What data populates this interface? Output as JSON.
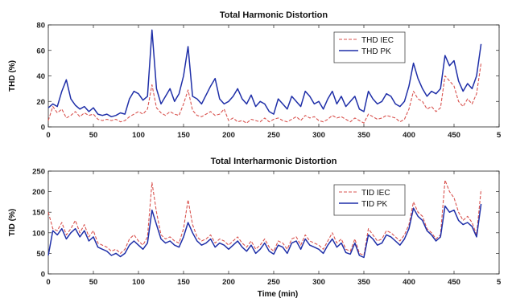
{
  "chart_data": [
    {
      "type": "line",
      "title": "Total Harmonic Distortion",
      "xlabel": "",
      "ylabel": "THD (%)",
      "xlim": [
        0,
        500
      ],
      "ylim": [
        0,
        80
      ],
      "xticks": [
        "0",
        "50",
        "100",
        "150",
        "200",
        "250",
        "300",
        "350",
        "400",
        "450",
        "5"
      ],
      "yticks": [
        "0",
        "20",
        "40",
        "60",
        "80"
      ],
      "legend_position": "top-right",
      "series": [
        {
          "name": "THD IEC",
          "color": "#d9534f",
          "style": "dashed",
          "x": [
            0,
            5,
            10,
            15,
            20,
            25,
            30,
            35,
            40,
            45,
            50,
            55,
            60,
            65,
            70,
            75,
            80,
            85,
            90,
            95,
            100,
            105,
            110,
            115,
            120,
            125,
            130,
            135,
            140,
            145,
            150,
            155,
            160,
            165,
            170,
            175,
            180,
            185,
            190,
            195,
            200,
            205,
            210,
            215,
            220,
            225,
            230,
            235,
            240,
            245,
            250,
            255,
            260,
            265,
            270,
            275,
            280,
            285,
            290,
            295,
            300,
            305,
            310,
            315,
            320,
            325,
            330,
            335,
            340,
            345,
            350,
            355,
            360,
            365,
            370,
            375,
            380,
            385,
            390,
            395,
            400,
            405,
            410,
            415,
            420,
            425,
            430,
            435,
            440,
            445,
            450,
            455,
            460,
            465,
            470,
            475,
            480
          ],
          "values": [
            5,
            16,
            11,
            14,
            7,
            9,
            12,
            8,
            11,
            9,
            10,
            6,
            5,
            6,
            5,
            6,
            4,
            5,
            8,
            10,
            12,
            10,
            14,
            33,
            15,
            11,
            9,
            12,
            10,
            9,
            18,
            29,
            13,
            9,
            8,
            10,
            12,
            9,
            10,
            14,
            5,
            7,
            4,
            5,
            3,
            6,
            5,
            4,
            7,
            4,
            6,
            7,
            5,
            4,
            6,
            8,
            5,
            9,
            7,
            8,
            5,
            4,
            6,
            9,
            7,
            8,
            6,
            4,
            7,
            5,
            3,
            10,
            8,
            6,
            7,
            9,
            8,
            7,
            4,
            6,
            14,
            28,
            22,
            20,
            14,
            16,
            12,
            15,
            40,
            36,
            32,
            20,
            16,
            22,
            18,
            26,
            50
          ]
        },
        {
          "name": "THD PK",
          "color": "#1f2fa8",
          "style": "solid",
          "x": [
            0,
            5,
            10,
            15,
            20,
            25,
            30,
            35,
            40,
            45,
            50,
            55,
            60,
            65,
            70,
            75,
            80,
            85,
            90,
            95,
            100,
            105,
            110,
            115,
            120,
            125,
            130,
            135,
            140,
            145,
            150,
            155,
            160,
            165,
            170,
            175,
            180,
            185,
            190,
            195,
            200,
            205,
            210,
            215,
            220,
            225,
            230,
            235,
            240,
            245,
            250,
            255,
            260,
            265,
            270,
            275,
            280,
            285,
            290,
            295,
            300,
            305,
            310,
            315,
            320,
            325,
            330,
            335,
            340,
            345,
            350,
            355,
            360,
            365,
            370,
            375,
            380,
            385,
            390,
            395,
            400,
            405,
            410,
            415,
            420,
            425,
            430,
            435,
            440,
            445,
            450,
            455,
            460,
            465,
            470,
            475,
            480
          ],
          "values": [
            15,
            18,
            16,
            28,
            37,
            22,
            17,
            14,
            16,
            12,
            15,
            10,
            9,
            10,
            8,
            9,
            11,
            10,
            22,
            28,
            26,
            21,
            24,
            76,
            30,
            18,
            24,
            30,
            20,
            26,
            40,
            63,
            24,
            22,
            18,
            25,
            32,
            38,
            22,
            18,
            20,
            24,
            30,
            22,
            18,
            25,
            16,
            20,
            18,
            12,
            10,
            22,
            18,
            14,
            24,
            20,
            16,
            28,
            24,
            18,
            20,
            14,
            22,
            28,
            18,
            24,
            16,
            20,
            24,
            14,
            12,
            28,
            22,
            18,
            20,
            26,
            24,
            18,
            16,
            20,
            32,
            50,
            38,
            30,
            24,
            28,
            26,
            30,
            56,
            48,
            52,
            36,
            28,
            34,
            30,
            40,
            65
          ]
        }
      ]
    },
    {
      "type": "line",
      "title": "Total Interharmonic Distortion",
      "xlabel": "Time (min)",
      "ylabel": "TID (%)",
      "xlim": [
        0,
        500
      ],
      "ylim": [
        0,
        250
      ],
      "xticks": [
        "0",
        "50",
        "100",
        "150",
        "200",
        "250",
        "300",
        "350",
        "400",
        "450",
        "5"
      ],
      "yticks": [
        "0",
        "50",
        "100",
        "150",
        "200",
        "250"
      ],
      "legend_position": "top-right",
      "series": [
        {
          "name": "TID IEC",
          "color": "#d9534f",
          "style": "dashed",
          "x": [
            0,
            5,
            10,
            15,
            20,
            25,
            30,
            35,
            40,
            45,
            50,
            55,
            60,
            65,
            70,
            75,
            80,
            85,
            90,
            95,
            100,
            105,
            110,
            115,
            120,
            125,
            130,
            135,
            140,
            145,
            150,
            155,
            160,
            165,
            170,
            175,
            180,
            185,
            190,
            195,
            200,
            205,
            210,
            215,
            220,
            225,
            230,
            235,
            240,
            245,
            250,
            255,
            260,
            265,
            270,
            275,
            280,
            285,
            290,
            295,
            300,
            305,
            310,
            315,
            320,
            325,
            330,
            335,
            340,
            345,
            350,
            355,
            360,
            365,
            370,
            375,
            380,
            385,
            390,
            395,
            400,
            405,
            410,
            415,
            420,
            425,
            430,
            435,
            440,
            445,
            450,
            455,
            460,
            465,
            470,
            475,
            480
          ],
          "values": [
            150,
            110,
            105,
            125,
            95,
            110,
            130,
            100,
            120,
            90,
            105,
            75,
            70,
            65,
            55,
            60,
            50,
            60,
            85,
            95,
            80,
            70,
            90,
            222,
            150,
            95,
            85,
            90,
            80,
            75,
            110,
            180,
            120,
            90,
            80,
            85,
            95,
            75,
            85,
            80,
            70,
            80,
            90,
            75,
            65,
            80,
            60,
            70,
            85,
            65,
            55,
            80,
            75,
            60,
            85,
            90,
            70,
            95,
            80,
            75,
            70,
            60,
            80,
            100,
            75,
            85,
            60,
            55,
            85,
            50,
            45,
            110,
            95,
            80,
            85,
            105,
            100,
            90,
            80,
            95,
            120,
            175,
            150,
            140,
            110,
            100,
            85,
            95,
            228,
            200,
            185,
            150,
            130,
            140,
            125,
            95,
            205
          ]
        },
        {
          "name": "TID PK",
          "color": "#1f2fa8",
          "style": "solid",
          "x": [
            0,
            5,
            10,
            15,
            20,
            25,
            30,
            35,
            40,
            45,
            50,
            55,
            60,
            65,
            70,
            75,
            80,
            85,
            90,
            95,
            100,
            105,
            110,
            115,
            120,
            125,
            130,
            135,
            140,
            145,
            150,
            155,
            160,
            165,
            170,
            175,
            180,
            185,
            190,
            195,
            200,
            205,
            210,
            215,
            220,
            225,
            230,
            235,
            240,
            245,
            250,
            255,
            260,
            265,
            270,
            275,
            280,
            285,
            290,
            295,
            300,
            305,
            310,
            315,
            320,
            325,
            330,
            335,
            340,
            345,
            350,
            355,
            360,
            365,
            370,
            375,
            380,
            385,
            390,
            395,
            400,
            405,
            410,
            415,
            420,
            425,
            430,
            435,
            440,
            445,
            450,
            455,
            460,
            465,
            470,
            475,
            480
          ],
          "values": [
            45,
            105,
            95,
            110,
            85,
            100,
            110,
            90,
            105,
            80,
            90,
            65,
            60,
            55,
            45,
            50,
            42,
            50,
            70,
            80,
            70,
            60,
            75,
            155,
            120,
            85,
            75,
            80,
            70,
            65,
            90,
            125,
            100,
            80,
            70,
            75,
            85,
            65,
            75,
            70,
            60,
            70,
            80,
            65,
            55,
            70,
            50,
            60,
            75,
            55,
            48,
            70,
            65,
            50,
            75,
            80,
            60,
            85,
            70,
            65,
            60,
            50,
            70,
            85,
            65,
            75,
            52,
            48,
            75,
            45,
            40,
            95,
            85,
            70,
            75,
            95,
            90,
            80,
            70,
            85,
            110,
            160,
            140,
            130,
            105,
            95,
            80,
            90,
            165,
            150,
            155,
            130,
            120,
            125,
            115,
            90,
            170
          ]
        }
      ]
    }
  ]
}
